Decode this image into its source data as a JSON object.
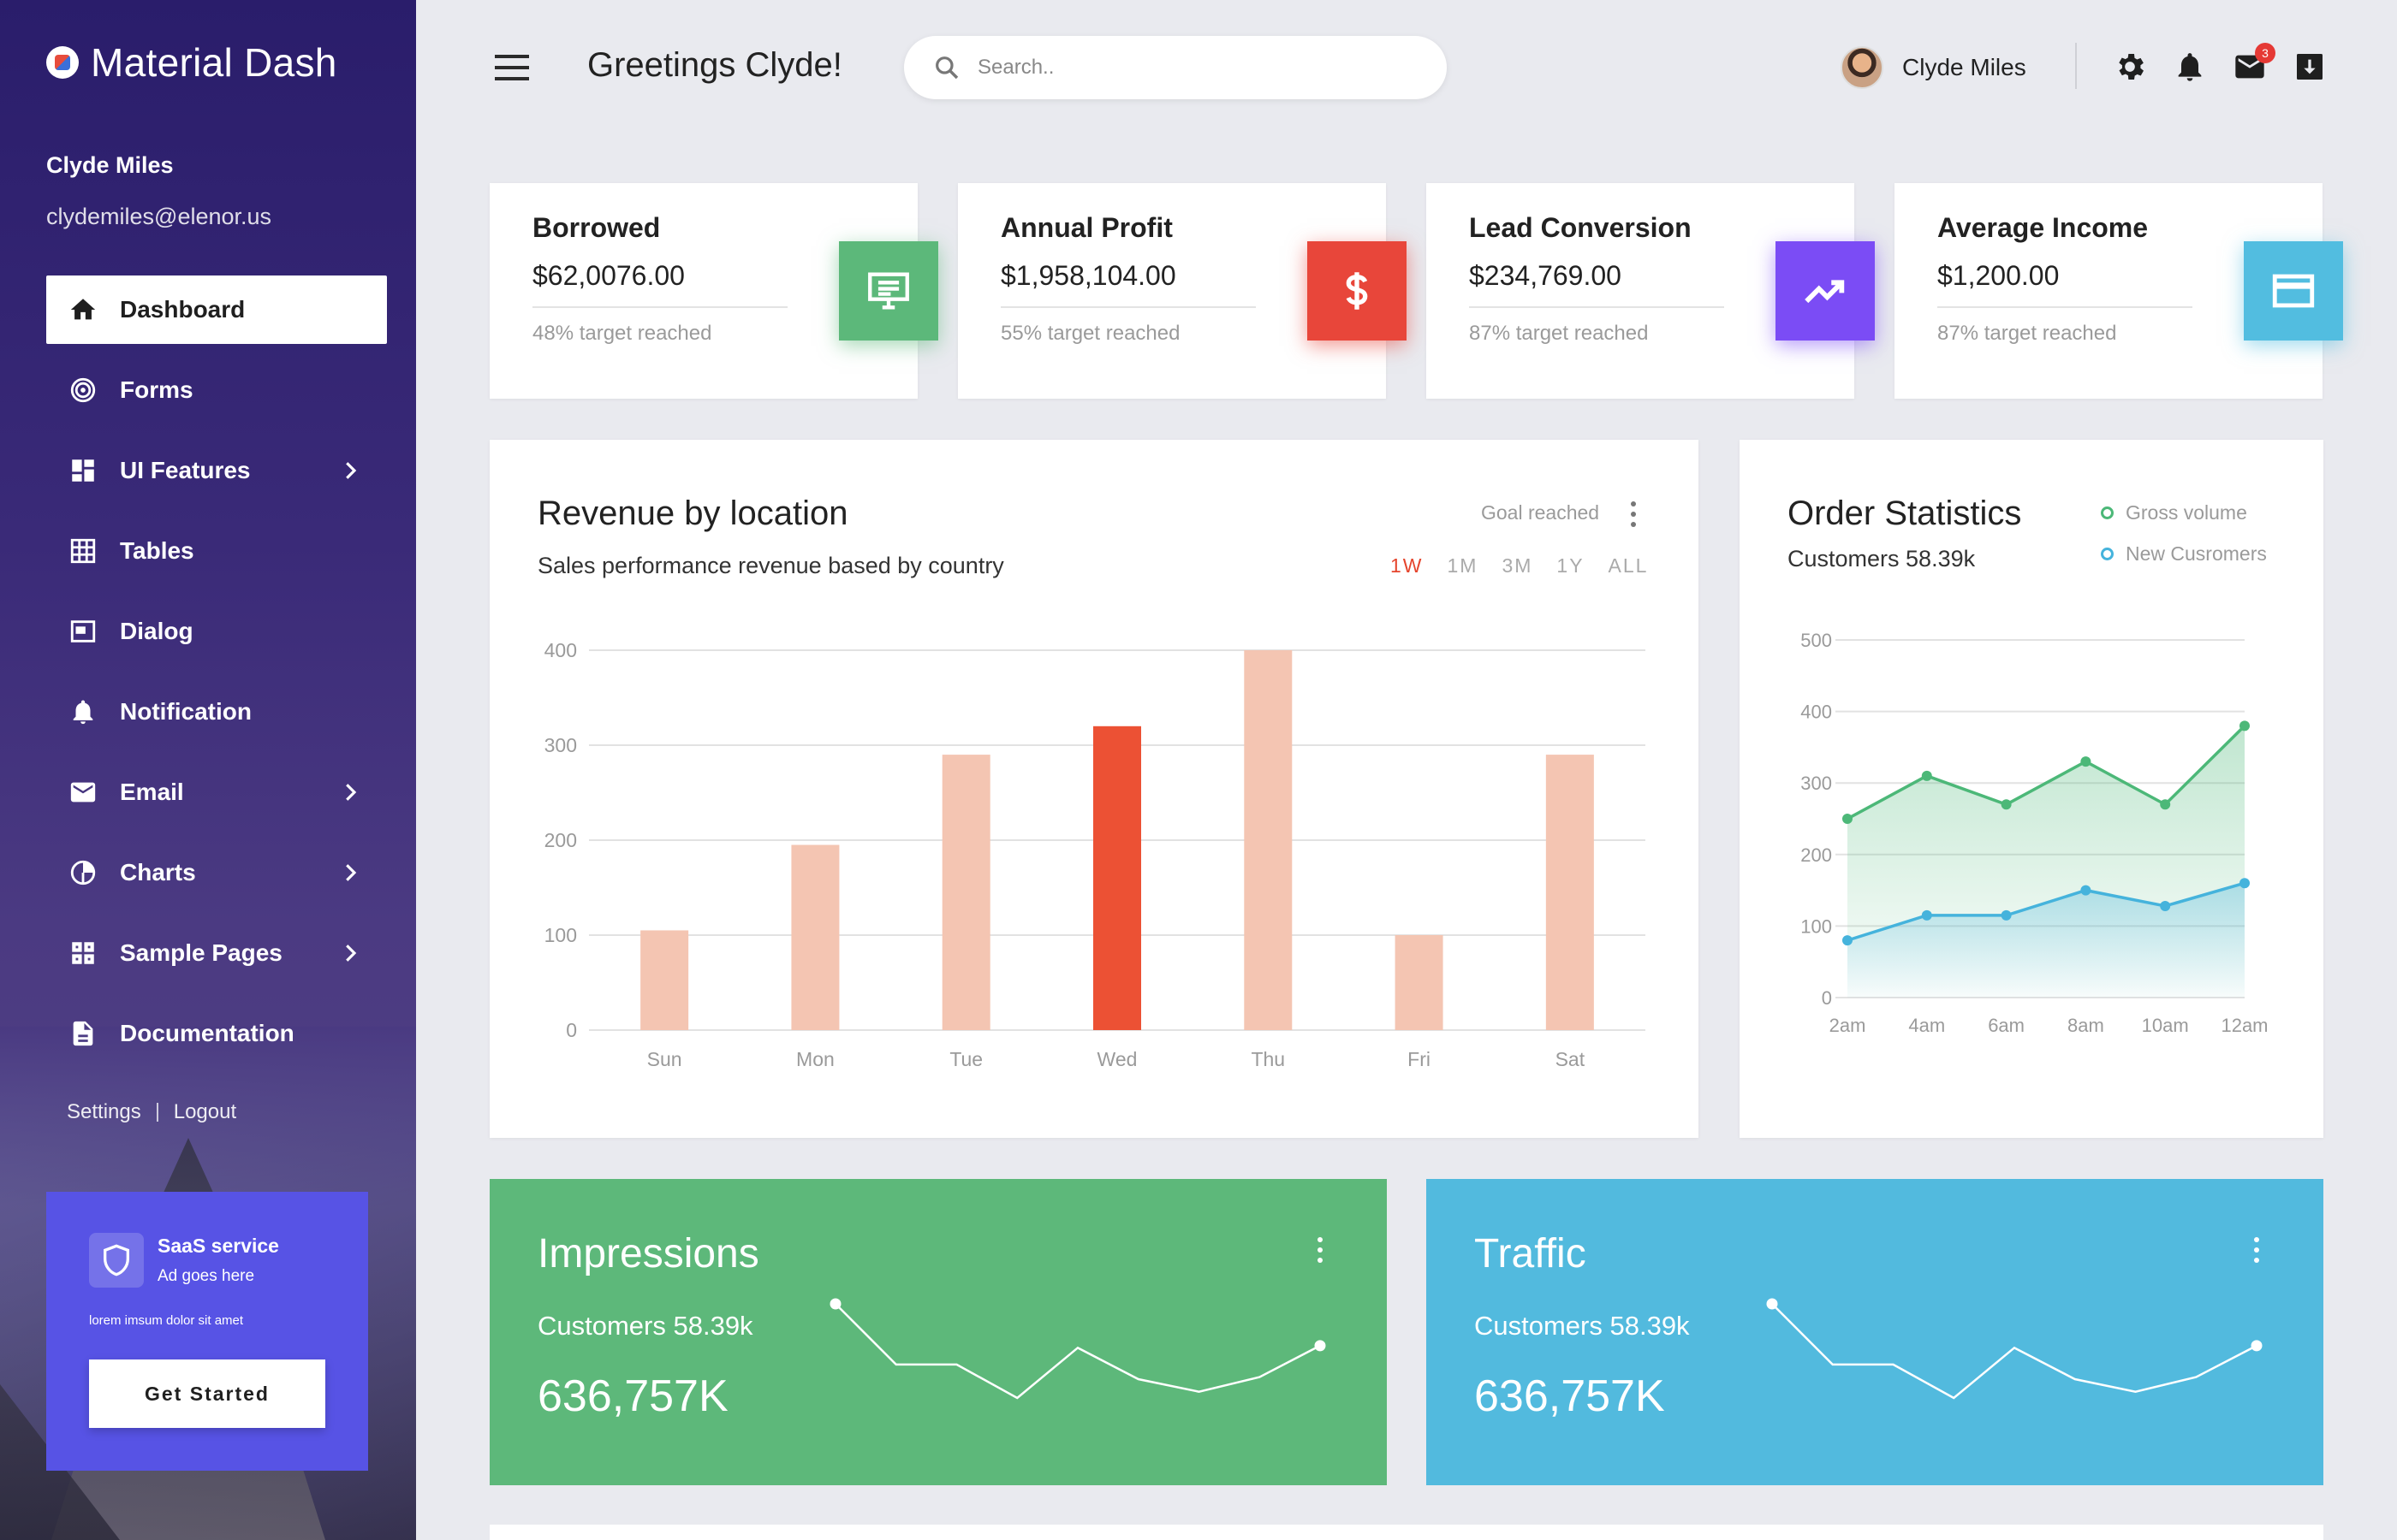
{
  "sidebar": {
    "brand": "Material Dash",
    "user_name": "Clyde Miles",
    "user_email": "clydemiles@elenor.us",
    "items": [
      {
        "label": "Dashboard",
        "icon": "home-icon",
        "active": true
      },
      {
        "label": "Forms",
        "icon": "fingerprint-icon"
      },
      {
        "label": "UI Features",
        "icon": "dashboard-grid-icon",
        "has_submenu": true
      },
      {
        "label": "Tables",
        "icon": "table-icon"
      },
      {
        "label": "Dialog",
        "icon": "dialog-icon"
      },
      {
        "label": "Notification",
        "icon": "bell-icon"
      },
      {
        "label": "Email",
        "icon": "mail-icon",
        "has_submenu": true
      },
      {
        "label": "Charts",
        "icon": "pie-chart-icon",
        "has_submenu": true
      },
      {
        "label": "Sample Pages",
        "icon": "pages-icon",
        "has_submenu": true
      },
      {
        "label": "Documentation",
        "icon": "document-icon"
      }
    ],
    "settings_label": "Settings",
    "logout_label": "Logout",
    "ad": {
      "title": "SaaS service",
      "subtitle": "Ad goes here",
      "text": "lorem imsum dolor sit amet",
      "button": "Get Started"
    }
  },
  "header": {
    "greeting": "Greetings Clyde!",
    "search_placeholder": "Search..",
    "user_name": "Clyde Miles",
    "mail_badge": "3",
    "icons": [
      "settings-icon",
      "bell-icon",
      "mail-icon",
      "download-icon"
    ]
  },
  "stats": [
    {
      "title": "Borrowed",
      "value": "$62,0076.00",
      "note": "48% target reached",
      "icon": "desktop-icon",
      "color": "#5cb87a"
    },
    {
      "title": "Annual Profit",
      "value": "$1,958,104.00",
      "note": "55% target reached",
      "icon": "dollar-icon",
      "color": "#e8463a"
    },
    {
      "title": "Lead Conversion",
      "value": "$234,769.00",
      "note": "87% target reached",
      "icon": "trending-up-icon",
      "color": "#7b4cf5"
    },
    {
      "title": "Average Income",
      "value": "$1,200.00",
      "note": "87% target reached",
      "icon": "credit-card-icon",
      "color": "#52bde0"
    }
  ],
  "revenue": {
    "title": "Revenue by location",
    "subtitle": "Sales performance revenue based by country",
    "goal_label": "Goal reached",
    "ranges": [
      "1W",
      "1M",
      "3M",
      "1Y",
      "ALL"
    ],
    "active_range": "1W"
  },
  "orders": {
    "title": "Order Statistics",
    "subtitle": "Customers 58.39k",
    "legend": [
      "Gross volume",
      "New Cusromers"
    ]
  },
  "impressions": {
    "title": "Impressions",
    "subtitle": "Customers 58.39k",
    "value": "636,757K",
    "color": "#5db87a"
  },
  "traffic": {
    "title": "Traffic",
    "subtitle": "Customers 58.39k",
    "value": "636,757K",
    "color": "#52bade"
  },
  "chart_data": [
    {
      "type": "bar",
      "categories": [
        "Sun",
        "Mon",
        "Tue",
        "Wed",
        "Thu",
        "Fri",
        "Sat"
      ],
      "values": [
        105,
        195,
        290,
        320,
        400,
        100,
        290
      ],
      "highlight_index": 3,
      "ylim": [
        0,
        400
      ],
      "yticks": [
        0,
        100,
        200,
        300,
        400
      ],
      "colors": {
        "bar": "#f4c5b2",
        "highlight": "#ec5134"
      },
      "grid": true
    },
    {
      "type": "area",
      "categories": [
        "2am",
        "4am",
        "6am",
        "8am",
        "10am",
        "12am"
      ],
      "series": [
        {
          "name": "Gross volume",
          "values": [
            250,
            310,
            270,
            330,
            270,
            380
          ],
          "color": "#4cb878"
        },
        {
          "name": "New Cusromers",
          "values": [
            80,
            115,
            115,
            150,
            128,
            160
          ],
          "color": "#45b3dc"
        }
      ],
      "ylim": [
        0,
        500
      ],
      "yticks": [
        0,
        100,
        200,
        300,
        400,
        500
      ],
      "grid": true,
      "legend": "top-right"
    },
    {
      "type": "line",
      "name": "impressions-sparkline",
      "values": [
        40,
        11,
        11,
        -5,
        19,
        4,
        -2,
        5,
        20
      ]
    },
    {
      "type": "line",
      "name": "traffic-sparkline",
      "values": [
        40,
        11,
        11,
        -5,
        19,
        4,
        -2,
        5,
        20
      ]
    }
  ]
}
